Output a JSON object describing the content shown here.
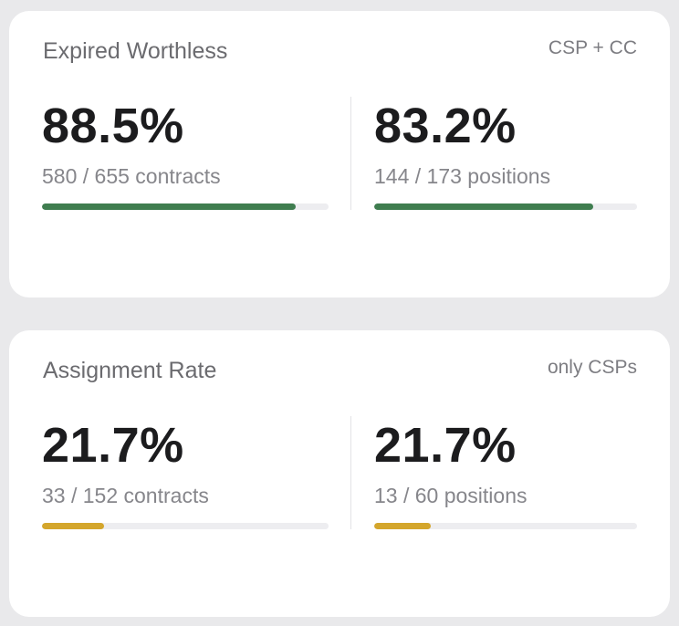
{
  "cards": [
    {
      "title": "Expired Worthless",
      "tag": "CSP + CC",
      "accent": "#3f7d4f",
      "metrics": [
        {
          "value": "88.5%",
          "sub": "580 / 655 contracts",
          "fraction": 0.885
        },
        {
          "value": "83.2%",
          "sub": "144 / 173 positions",
          "fraction": 0.832
        }
      ]
    },
    {
      "title": "Assignment Rate",
      "tag": "only CSPs",
      "accent": "#d4a62c",
      "metrics": [
        {
          "value": "21.7%",
          "sub": "33 / 152 contracts",
          "fraction": 0.217
        },
        {
          "value": "21.7%",
          "sub": "13 / 60 positions",
          "fraction": 0.217
        }
      ]
    }
  ]
}
